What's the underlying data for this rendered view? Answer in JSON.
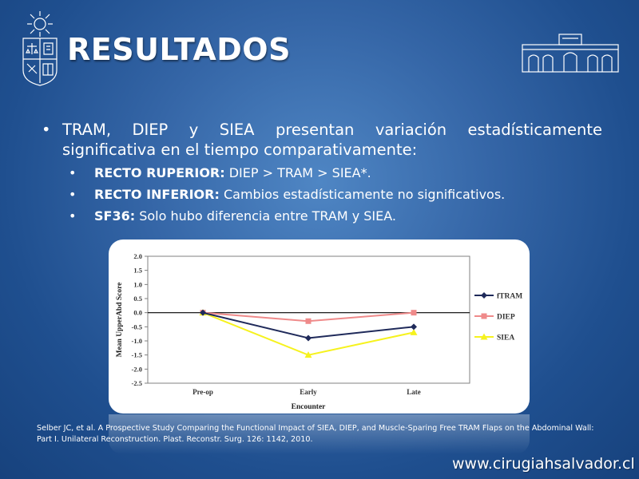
{
  "slide": {
    "title": "RESULTADOS",
    "bullet_main": "TRAM, DIEP y SIEA presentan variación estadísticamente significativa en el tiempo comparativamente:",
    "sub_bullets": [
      {
        "label": "RECTO RUPERIOR:",
        "text": " DIEP > TRAM > SIEA*."
      },
      {
        "label": "RECTO INFERIOR:",
        "text": " Cambios estadísticamente no significativos."
      },
      {
        "label": "SF36:",
        "text": " Solo hubo diferencia entre TRAM y SIEA."
      }
    ],
    "citation": "Selber JC, et al. A Prospective Study Comparing the Functional Impact of SIEA, DIEP, and Muscle-Sparing Free TRAM Flaps on the Abdominal Wall: Part I. Unilateral Reconstruction. Plast. Reconstr. Surg. 126: 1142, 2010.",
    "website": "www.cirugiahsalvador.cl"
  },
  "colors": {
    "background": "#2a5c9e",
    "fTRAM": "#1f2a5a",
    "DIEP": "#ef8a8a",
    "SIEA": "#f6f21e"
  },
  "chart_data": {
    "type": "line",
    "categories": [
      "Pre-op",
      "Early",
      "Late"
    ],
    "series": [
      {
        "name": "fTRAM",
        "values": [
          0.0,
          -0.9,
          -0.5
        ],
        "color": "#1f2a5a",
        "marker": "diamond"
      },
      {
        "name": "DIEP",
        "values": [
          0.0,
          -0.3,
          0.0
        ],
        "color": "#ef8a8a",
        "marker": "square"
      },
      {
        "name": "SIEA",
        "values": [
          0.0,
          -1.5,
          -0.7
        ],
        "color": "#f6f21e",
        "marker": "triangle"
      }
    ],
    "xlabel": "Encounter",
    "ylabel": "Mean UpperAbd Score",
    "ylim": [
      -2.5,
      2.0
    ],
    "yticks": [
      "2.0",
      "1.5",
      "1.0",
      "0.5",
      "0.0",
      "-0.5",
      "-1.0",
      "-1.5",
      "-2.0",
      "-2.5"
    ],
    "grid": false,
    "legend": "right"
  }
}
